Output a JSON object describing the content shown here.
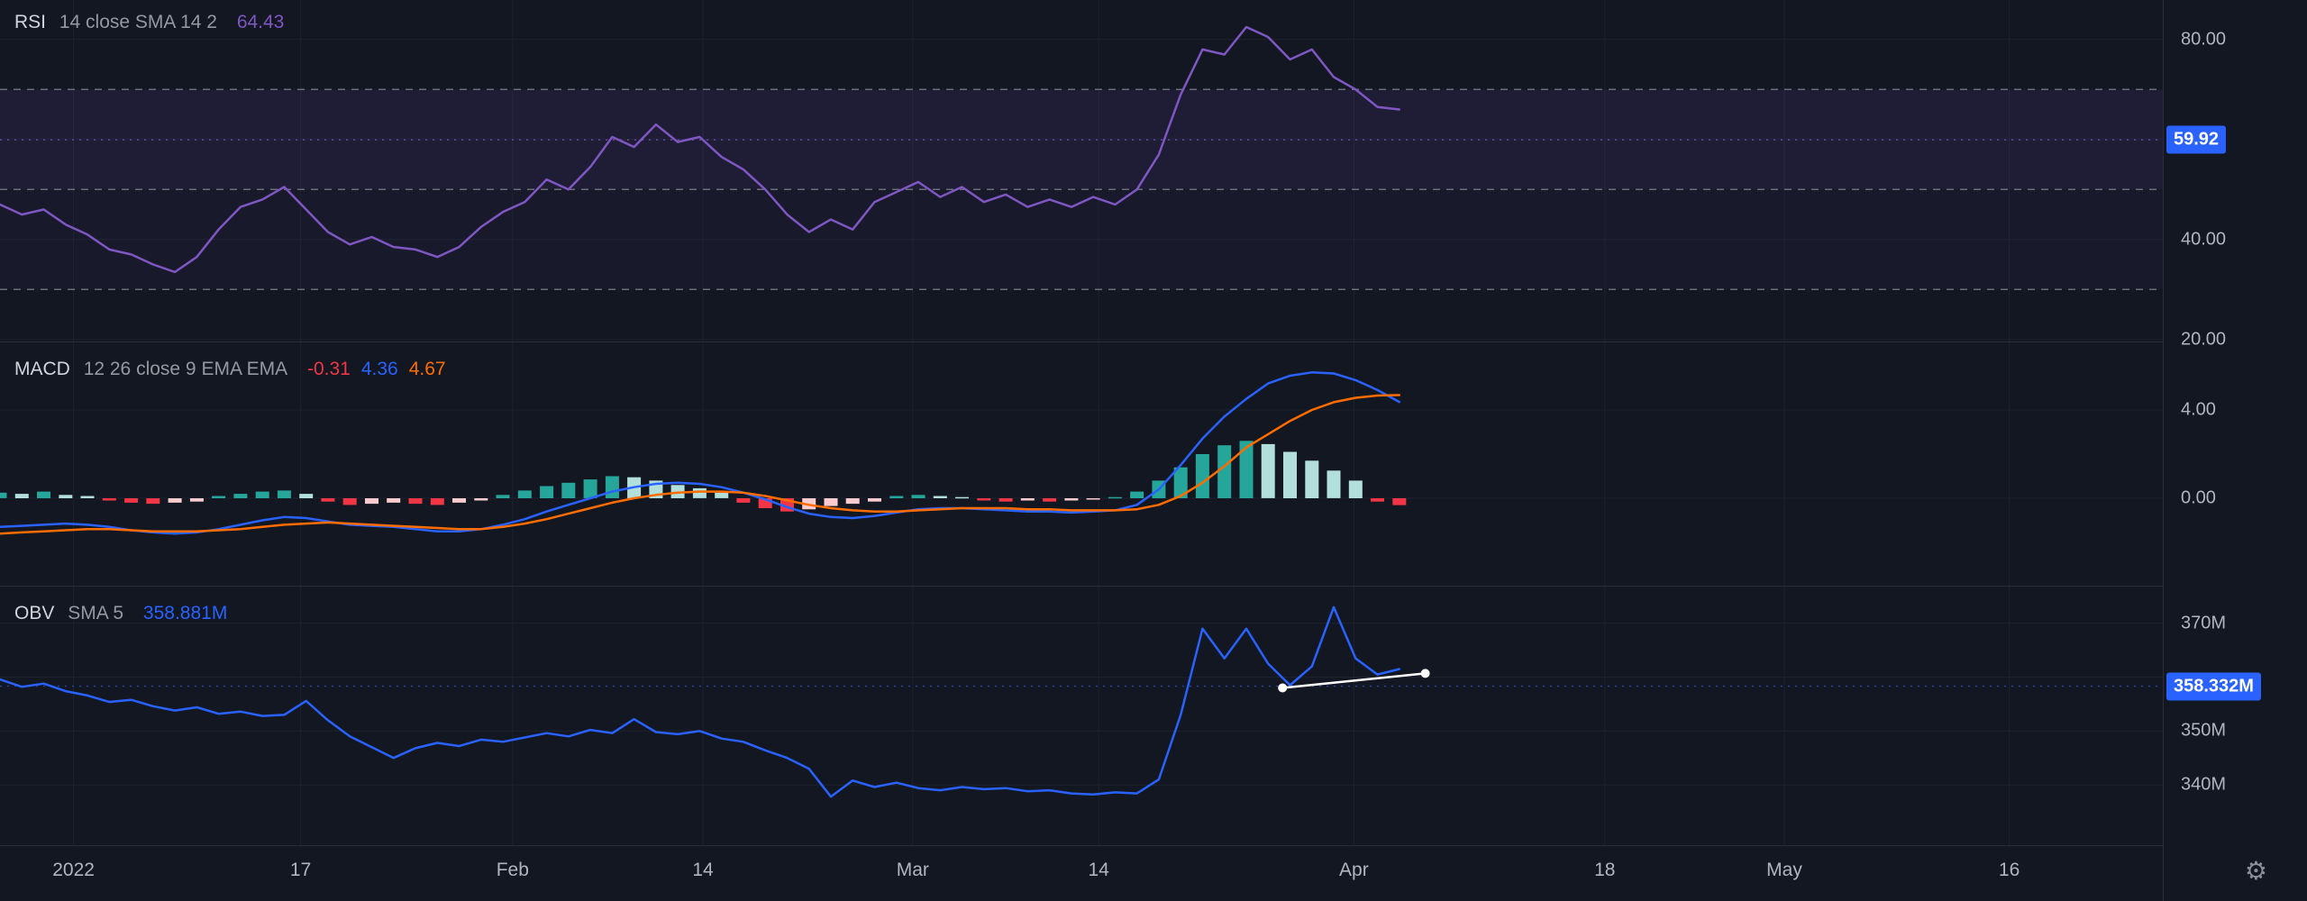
{
  "colors": {
    "bg": "#131722",
    "grid": "#1e222d",
    "divider": "#2a2e39",
    "axis_text": "#b2b5be",
    "dashed_level": "#6a6e78",
    "price_tag_bg": "#2962ff"
  },
  "icons": {
    "settings": "⚙"
  },
  "time_axis": {
    "labels": [
      {
        "text": "2022",
        "x": 0.034
      },
      {
        "text": "17",
        "x": 0.139
      },
      {
        "text": "Feb",
        "x": 0.237
      },
      {
        "text": "14",
        "x": 0.325
      },
      {
        "text": "Mar",
        "x": 0.422
      },
      {
        "text": "14",
        "x": 0.508
      },
      {
        "text": "Apr",
        "x": 0.626
      },
      {
        "text": "18",
        "x": 0.742
      },
      {
        "text": "May",
        "x": 0.825
      },
      {
        "text": "16",
        "x": 0.929
      }
    ]
  },
  "chart_data": [
    {
      "type": "line",
      "title": "RSI",
      "params": "14 close SMA 14 2",
      "legend_values": [
        {
          "text": "64.43",
          "color": "#7e57c2"
        }
      ],
      "ylim": [
        19.6,
        87.9
      ],
      "x_range": [
        0,
        0.647
      ],
      "y_ticks": [
        {
          "label": "80.00",
          "value": 80
        },
        {
          "label": "40.00",
          "value": 40
        },
        {
          "label": "20.00",
          "value": 20
        }
      ],
      "grid_values": [
        80,
        60,
        40,
        20
      ],
      "bands": [
        {
          "from": 70,
          "to": 30,
          "color": "rgba(126,87,194,0.05)"
        },
        {
          "from": 70,
          "to": 50,
          "color": "rgba(126,87,194,0.07)"
        }
      ],
      "levels": [
        {
          "value": 70,
          "style": "dashed"
        },
        {
          "value": 50,
          "style": "dashed"
        },
        {
          "value": 30,
          "style": "dashed"
        },
        {
          "value": 59.92,
          "style": "dotted",
          "color": "#7e57c2",
          "opacity": 0.75
        }
      ],
      "price_label": {
        "text": "59.92",
        "value": 59.92
      },
      "series": [
        {
          "name": "RSI",
          "color": "#7e57c2",
          "width": 2.5,
          "values": [
            47,
            45,
            46,
            43,
            41,
            38,
            37,
            35,
            33.5,
            36.5,
            42,
            46.5,
            48,
            50.5,
            46,
            41.5,
            39,
            40.5,
            38.5,
            38,
            36.5,
            38.5,
            42.5,
            45.5,
            47.5,
            52,
            50,
            54.5,
            60.5,
            58.5,
            63,
            59.5,
            60.5,
            56.5,
            54,
            50,
            45,
            41.5,
            44,
            42,
            47.5,
            49.5,
            51.5,
            48.5,
            50.5,
            47.5,
            49,
            46.5,
            48,
            46.5,
            48.5,
            47,
            50,
            57,
            69,
            78,
            77,
            82.5,
            80.5,
            76,
            78,
            72.5,
            70,
            66.5,
            66
          ]
        }
      ]
    },
    {
      "type": "macd",
      "title": "MACD",
      "params": "12 26 close 9 EMA EMA",
      "legend_values": [
        {
          "text": "-0.31",
          "color": "#f23645"
        },
        {
          "text": "4.36",
          "color": "#2962ff"
        },
        {
          "text": "4.67",
          "color": "#ff6d00"
        }
      ],
      "ylim": [
        -3.96,
        7.1
      ],
      "x_range": [
        0,
        0.647
      ],
      "y_ticks": [
        {
          "label": "4.00",
          "value": 4
        },
        {
          "label": "0.00",
          "value": 0
        }
      ],
      "grid_values": [
        4,
        0
      ],
      "histogram": {
        "colors": {
          "up_grow": "#26a69a",
          "up_fall": "#b2dfdb",
          "down_fall": "#f23645",
          "down_grow": "#fccbcd"
        },
        "values": [
          0.25,
          0.2,
          0.3,
          0.15,
          0.1,
          -0.1,
          -0.2,
          -0.25,
          -0.2,
          -0.15,
          0.1,
          0.2,
          0.3,
          0.35,
          0.2,
          -0.15,
          -0.3,
          -0.25,
          -0.2,
          -0.25,
          -0.3,
          -0.2,
          -0.1,
          0.15,
          0.35,
          0.55,
          0.7,
          0.85,
          1.0,
          0.95,
          0.8,
          0.6,
          0.45,
          0.25,
          -0.2,
          -0.45,
          -0.6,
          -0.5,
          -0.35,
          -0.25,
          -0.15,
          0.1,
          0.15,
          0.1,
          0.05,
          -0.1,
          -0.15,
          -0.1,
          -0.15,
          -0.1,
          -0.05,
          0.05,
          0.3,
          0.8,
          1.4,
          2.0,
          2.4,
          2.6,
          2.45,
          2.1,
          1.7,
          1.25,
          0.8,
          -0.15,
          -0.31
        ]
      },
      "series": [
        {
          "name": "MACD",
          "color": "#2962ff",
          "width": 2.5,
          "values": [
            -1.3,
            -1.25,
            -1.2,
            -1.15,
            -1.2,
            -1.3,
            -1.45,
            -1.55,
            -1.6,
            -1.55,
            -1.4,
            -1.2,
            -1.0,
            -0.85,
            -0.9,
            -1.05,
            -1.2,
            -1.25,
            -1.3,
            -1.4,
            -1.5,
            -1.5,
            -1.4,
            -1.2,
            -0.95,
            -0.6,
            -0.3,
            0.0,
            0.3,
            0.5,
            0.65,
            0.7,
            0.65,
            0.5,
            0.25,
            -0.05,
            -0.4,
            -0.7,
            -0.85,
            -0.9,
            -0.8,
            -0.65,
            -0.5,
            -0.45,
            -0.45,
            -0.5,
            -0.55,
            -0.6,
            -0.6,
            -0.65,
            -0.6,
            -0.55,
            -0.3,
            0.4,
            1.5,
            2.7,
            3.7,
            4.5,
            5.2,
            5.55,
            5.7,
            5.65,
            5.35,
            4.9,
            4.36
          ]
        },
        {
          "name": "Signal",
          "color": "#ff6d00",
          "width": 2.5,
          "values": [
            -1.6,
            -1.55,
            -1.5,
            -1.45,
            -1.4,
            -1.4,
            -1.45,
            -1.5,
            -1.5,
            -1.5,
            -1.45,
            -1.4,
            -1.3,
            -1.2,
            -1.15,
            -1.1,
            -1.15,
            -1.2,
            -1.25,
            -1.3,
            -1.35,
            -1.4,
            -1.4,
            -1.3,
            -1.15,
            -0.95,
            -0.7,
            -0.45,
            -0.2,
            0.0,
            0.15,
            0.25,
            0.3,
            0.3,
            0.25,
            0.1,
            -0.1,
            -0.3,
            -0.45,
            -0.55,
            -0.6,
            -0.6,
            -0.55,
            -0.5,
            -0.45,
            -0.45,
            -0.45,
            -0.5,
            -0.5,
            -0.55,
            -0.55,
            -0.55,
            -0.5,
            -0.3,
            0.1,
            0.7,
            1.45,
            2.3,
            2.9,
            3.5,
            4.0,
            4.35,
            4.55,
            4.65,
            4.67
          ]
        }
      ]
    },
    {
      "type": "line",
      "title": "OBV",
      "params": "SMA 5",
      "legend_values": [
        {
          "text": "358.881M",
          "color": "#2962ff"
        }
      ],
      "ylim": [
        328.8,
        377.0
      ],
      "x_range": [
        0,
        0.647
      ],
      "y_ticks": [
        {
          "label": "370M",
          "value": 370
        },
        {
          "label": "350M",
          "value": 350
        },
        {
          "label": "340M",
          "value": 340
        }
      ],
      "grid_values": [
        370,
        360,
        350,
        340
      ],
      "levels": [
        {
          "value": 358.332,
          "style": "dotted",
          "color": "#2962ff",
          "opacity": 0.6
        }
      ],
      "price_label": {
        "text": "358.332M",
        "value": 358.332
      },
      "series": [
        {
          "name": "OBV",
          "color": "#2962ff",
          "width": 2.5,
          "values": [
            359.6,
            358.2,
            358.8,
            357.4,
            356.6,
            355.4,
            355.8,
            354.6,
            353.8,
            354.4,
            353.2,
            353.6,
            352.8,
            353.0,
            355.6,
            352.0,
            349.0,
            347.0,
            345.0,
            346.8,
            347.8,
            347.2,
            348.4,
            348.0,
            348.8,
            349.6,
            349.0,
            350.2,
            349.6,
            352.2,
            349.8,
            349.4,
            350.0,
            348.6,
            348.0,
            346.4,
            345.0,
            343.0,
            337.8,
            340.8,
            339.6,
            340.4,
            339.4,
            339.0,
            339.6,
            339.2,
            339.4,
            338.8,
            339.0,
            338.4,
            338.2,
            338.6,
            338.4,
            341.0,
            353.0,
            369.0,
            363.5,
            369.0,
            362.5,
            358.5,
            362.0,
            373.0,
            363.5,
            360.5,
            361.5
          ]
        }
      ],
      "trendline": {
        "color": "#ffffff",
        "points": [
          [
            0.593,
            358.0
          ],
          [
            0.659,
            360.7
          ]
        ]
      }
    }
  ]
}
